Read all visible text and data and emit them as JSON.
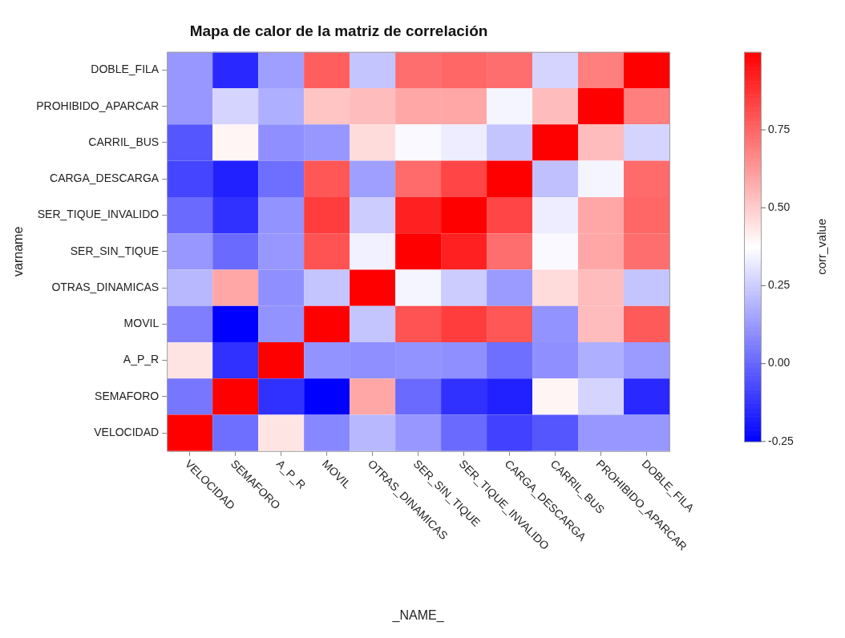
{
  "chart_data": {
    "type": "heatmap",
    "title": "Mapa de calor de la matriz de correlación",
    "xlabel": "_NAME_",
    "ylabel": "varname",
    "clabel": "corr_value",
    "categories": [
      "VELOCIDAD",
      "SEMAFORO",
      "A_P_R",
      "MOVIL",
      "OTRAS_DINAMICAS",
      "SER_SIN_TIQUE",
      "SER_TIQUE_INVALIDO",
      "CARGA_DESCARGA",
      "CARRIL_BUS",
      "PROHIBIDO_APARCAR",
      "DOBLE_FILA"
    ],
    "y_categories": [
      "DOBLE_FILA",
      "PROHIBIDO_APARCAR",
      "CARRIL_BUS",
      "CARGA_DESCARGA",
      "SER_TIQUE_INVALIDO",
      "SER_SIN_TIQUE",
      "OTRAS_DINAMICAS",
      "MOVIL",
      "A_P_R",
      "SEMAFORO",
      "VELOCIDAD"
    ],
    "cells": [
      [
        0.12,
        -0.15,
        0.14,
        0.77,
        0.23,
        0.73,
        0.75,
        0.73,
        0.27,
        0.69,
        1.0
      ],
      [
        0.12,
        0.27,
        0.18,
        0.52,
        0.54,
        0.59,
        0.59,
        0.35,
        0.54,
        1.0,
        0.69
      ],
      [
        -0.04,
        0.4,
        0.1,
        0.12,
        0.46,
        0.36,
        0.33,
        0.23,
        1.0,
        0.54,
        0.27
      ],
      [
        -0.08,
        -0.17,
        0.02,
        0.79,
        0.14,
        0.74,
        0.83,
        1.0,
        0.22,
        0.35,
        0.74
      ],
      [
        0.01,
        -0.13,
        0.11,
        0.85,
        0.25,
        0.92,
        1.0,
        0.83,
        0.33,
        0.59,
        0.75
      ],
      [
        0.12,
        0.01,
        0.12,
        0.8,
        0.34,
        1.0,
        0.92,
        0.73,
        0.36,
        0.59,
        0.73
      ],
      [
        0.2,
        0.59,
        0.1,
        0.23,
        1.0,
        0.35,
        0.25,
        0.13,
        0.46,
        0.54,
        0.23
      ],
      [
        0.06,
        -0.25,
        0.11,
        1.0,
        0.23,
        0.8,
        0.85,
        0.79,
        0.11,
        0.54,
        0.78
      ],
      [
        0.44,
        -0.13,
        1.0,
        0.11,
        0.1,
        0.11,
        0.1,
        0.02,
        0.1,
        0.18,
        0.13
      ],
      [
        0.04,
        1.0,
        -0.13,
        -0.25,
        0.59,
        0.01,
        -0.13,
        -0.17,
        0.4,
        0.27,
        -0.15
      ],
      [
        1.0,
        0.02,
        0.44,
        0.08,
        0.2,
        0.12,
        0.01,
        -0.09,
        -0.04,
        0.12,
        0.12
      ]
    ],
    "clim": [
      -0.25,
      1.0
    ],
    "cticks": [
      {
        "value": -0.25,
        "label": "-0.25"
      },
      {
        "value": 0,
        "label": "0.00"
      },
      {
        "value": 0.25,
        "label": "0.25"
      },
      {
        "value": 0.5,
        "label": "0.50"
      },
      {
        "value": 0.75,
        "label": "0.75"
      }
    ],
    "grid": false
  }
}
